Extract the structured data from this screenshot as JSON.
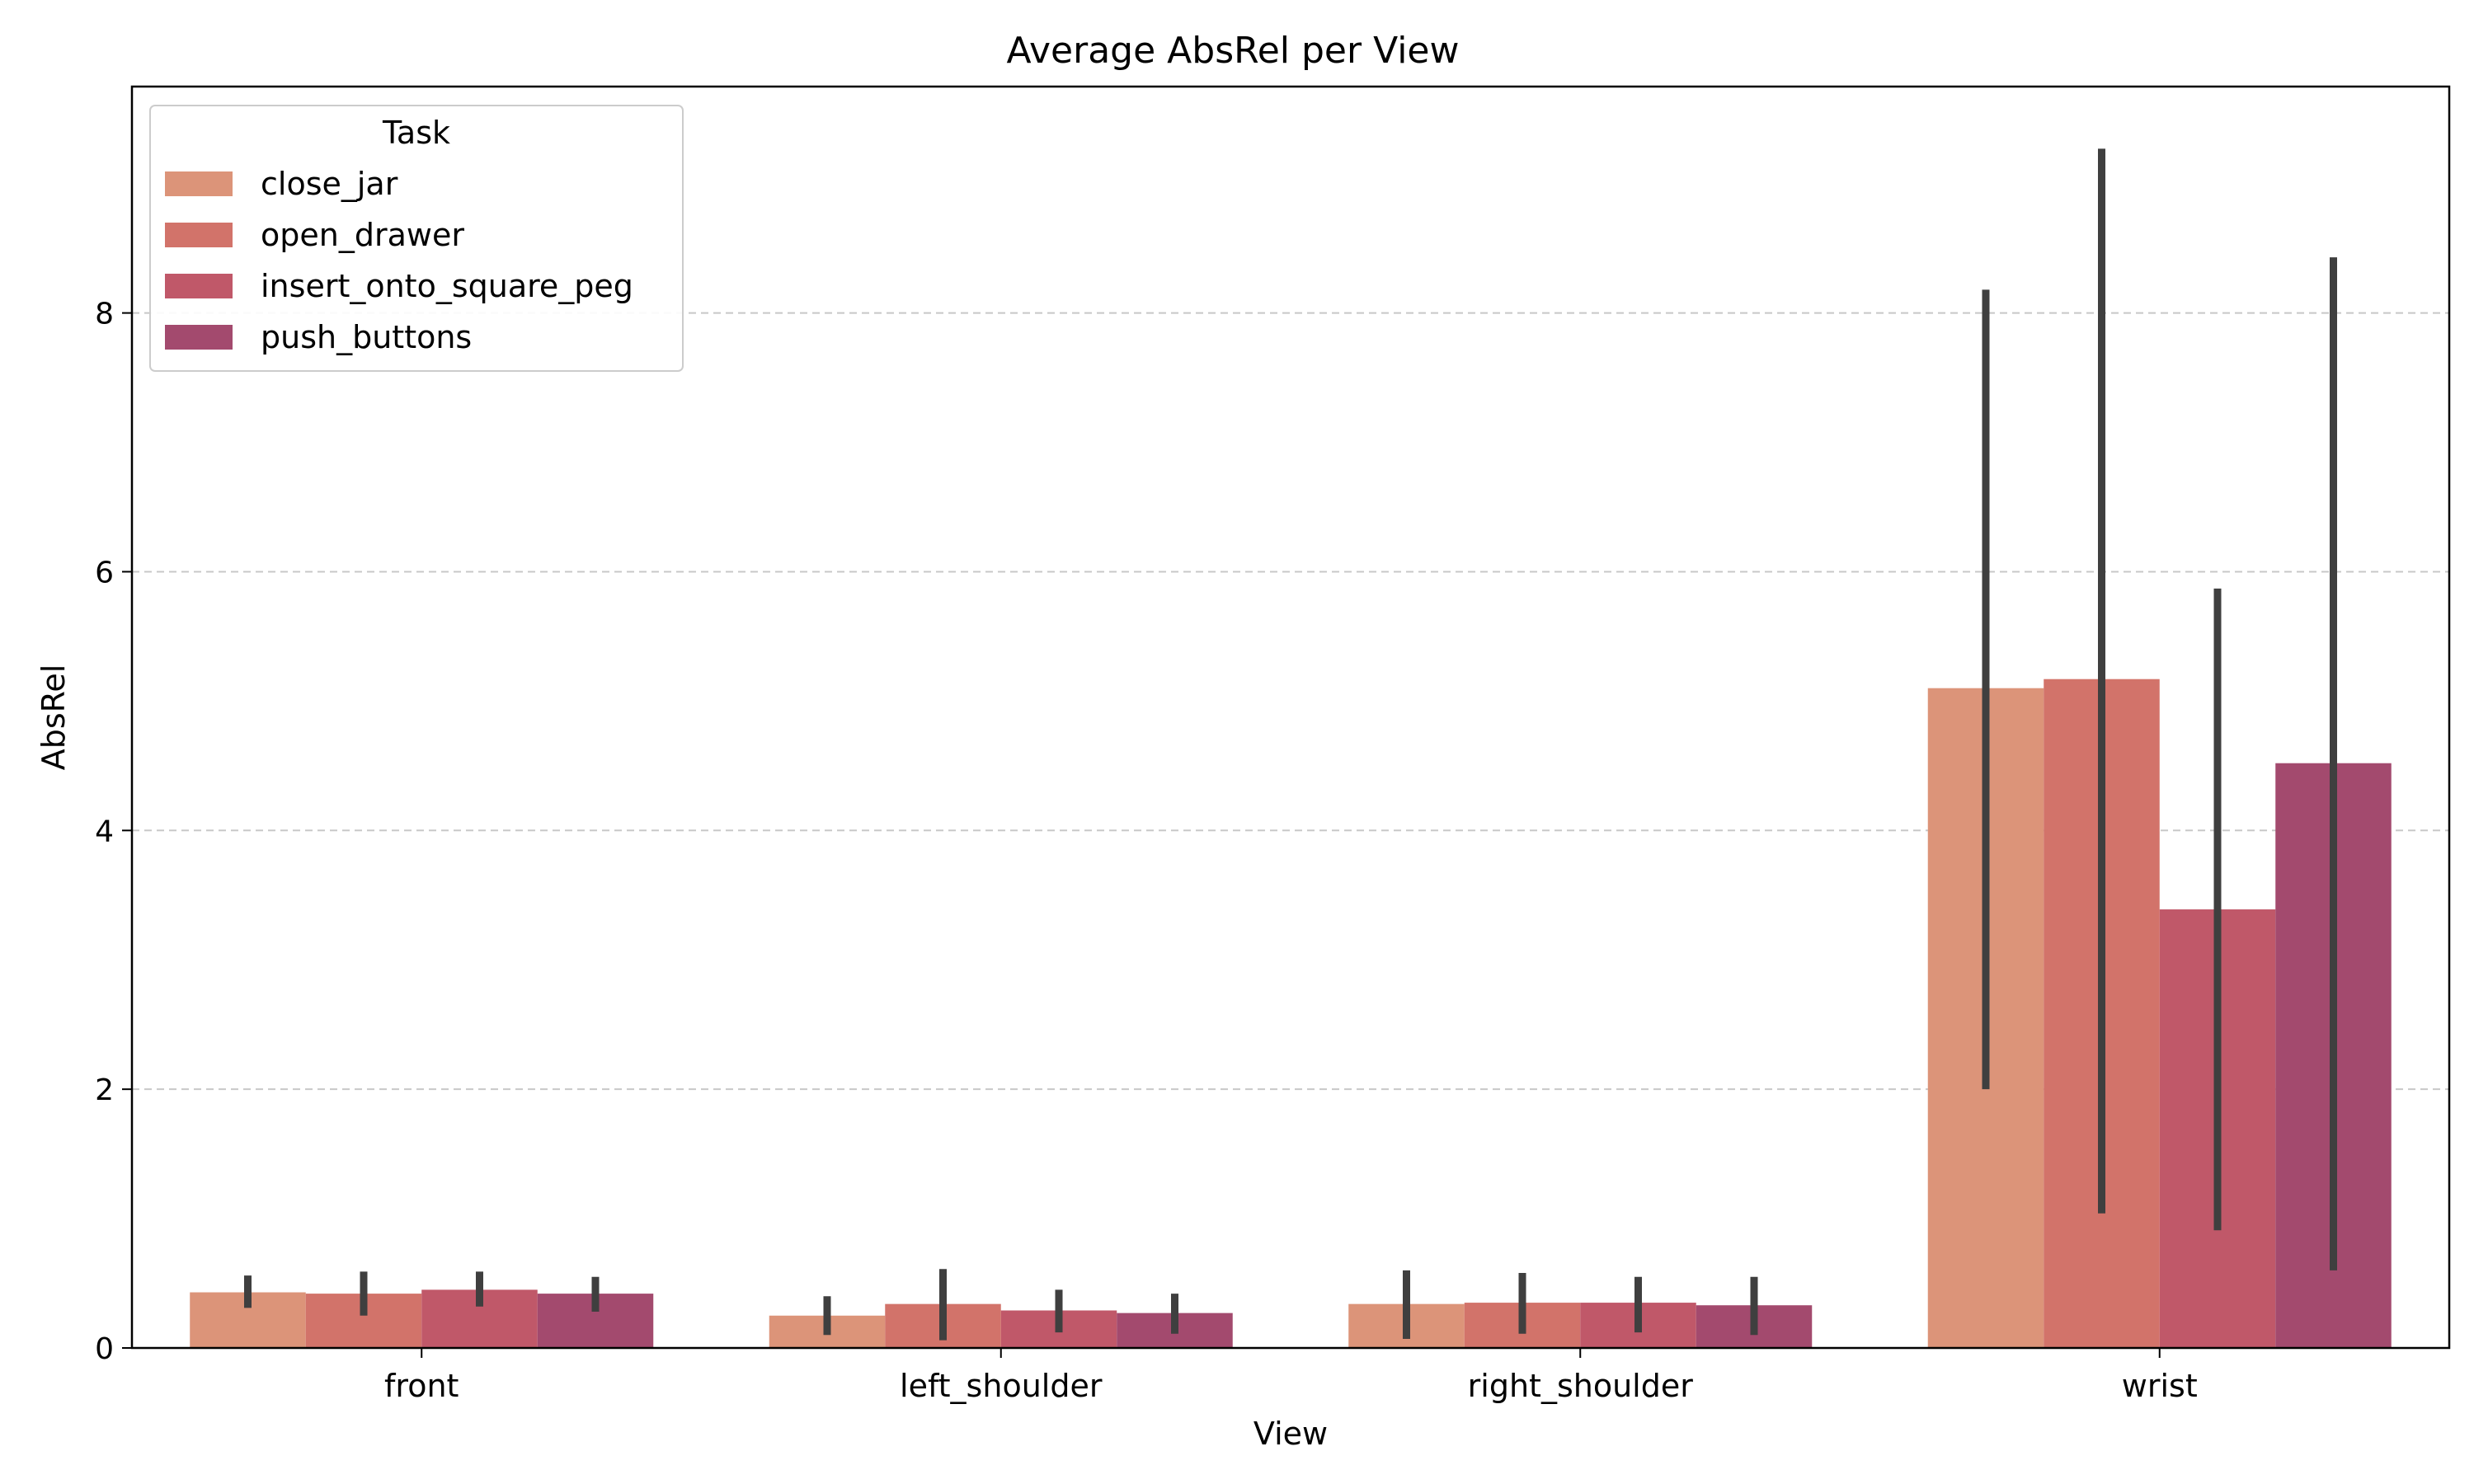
{
  "chart_data": {
    "type": "bar",
    "title": "Average AbsRel per View",
    "xlabel": "View",
    "ylabel": "AbsRel",
    "categories": [
      "front",
      "left_shoulder",
      "right_shoulder",
      "wrist"
    ],
    "ylim": [
      0,
      9.75
    ],
    "yticks": [
      0,
      2,
      4,
      6,
      8
    ],
    "grid": "y, dashed",
    "legend": {
      "title": "Task",
      "placement": "top-left"
    },
    "series": [
      {
        "name": "close_jar",
        "color": "#dc9479",
        "values": [
          0.43,
          0.25,
          0.34,
          5.1
        ],
        "err_low": [
          0.31,
          0.1,
          0.07,
          2.0
        ],
        "err_high": [
          0.56,
          0.4,
          0.6,
          8.18
        ]
      },
      {
        "name": "open_drawer",
        "color": "#d2736a",
        "values": [
          0.42,
          0.34,
          0.35,
          5.17
        ],
        "err_low": [
          0.25,
          0.06,
          0.11,
          1.04
        ],
        "err_high": [
          0.59,
          0.61,
          0.58,
          9.27
        ]
      },
      {
        "name": "insert_onto_square_peg",
        "color": "#c05869",
        "values": [
          0.45,
          0.29,
          0.35,
          3.39
        ],
        "err_low": [
          0.32,
          0.12,
          0.12,
          0.91
        ],
        "err_high": [
          0.59,
          0.45,
          0.55,
          5.87
        ]
      },
      {
        "name": "push_buttons",
        "color": "#a34a6e",
        "values": [
          0.42,
          0.27,
          0.33,
          4.52
        ],
        "err_low": [
          0.28,
          0.11,
          0.1,
          0.6
        ],
        "err_high": [
          0.55,
          0.42,
          0.55,
          8.43
        ]
      }
    ]
  }
}
